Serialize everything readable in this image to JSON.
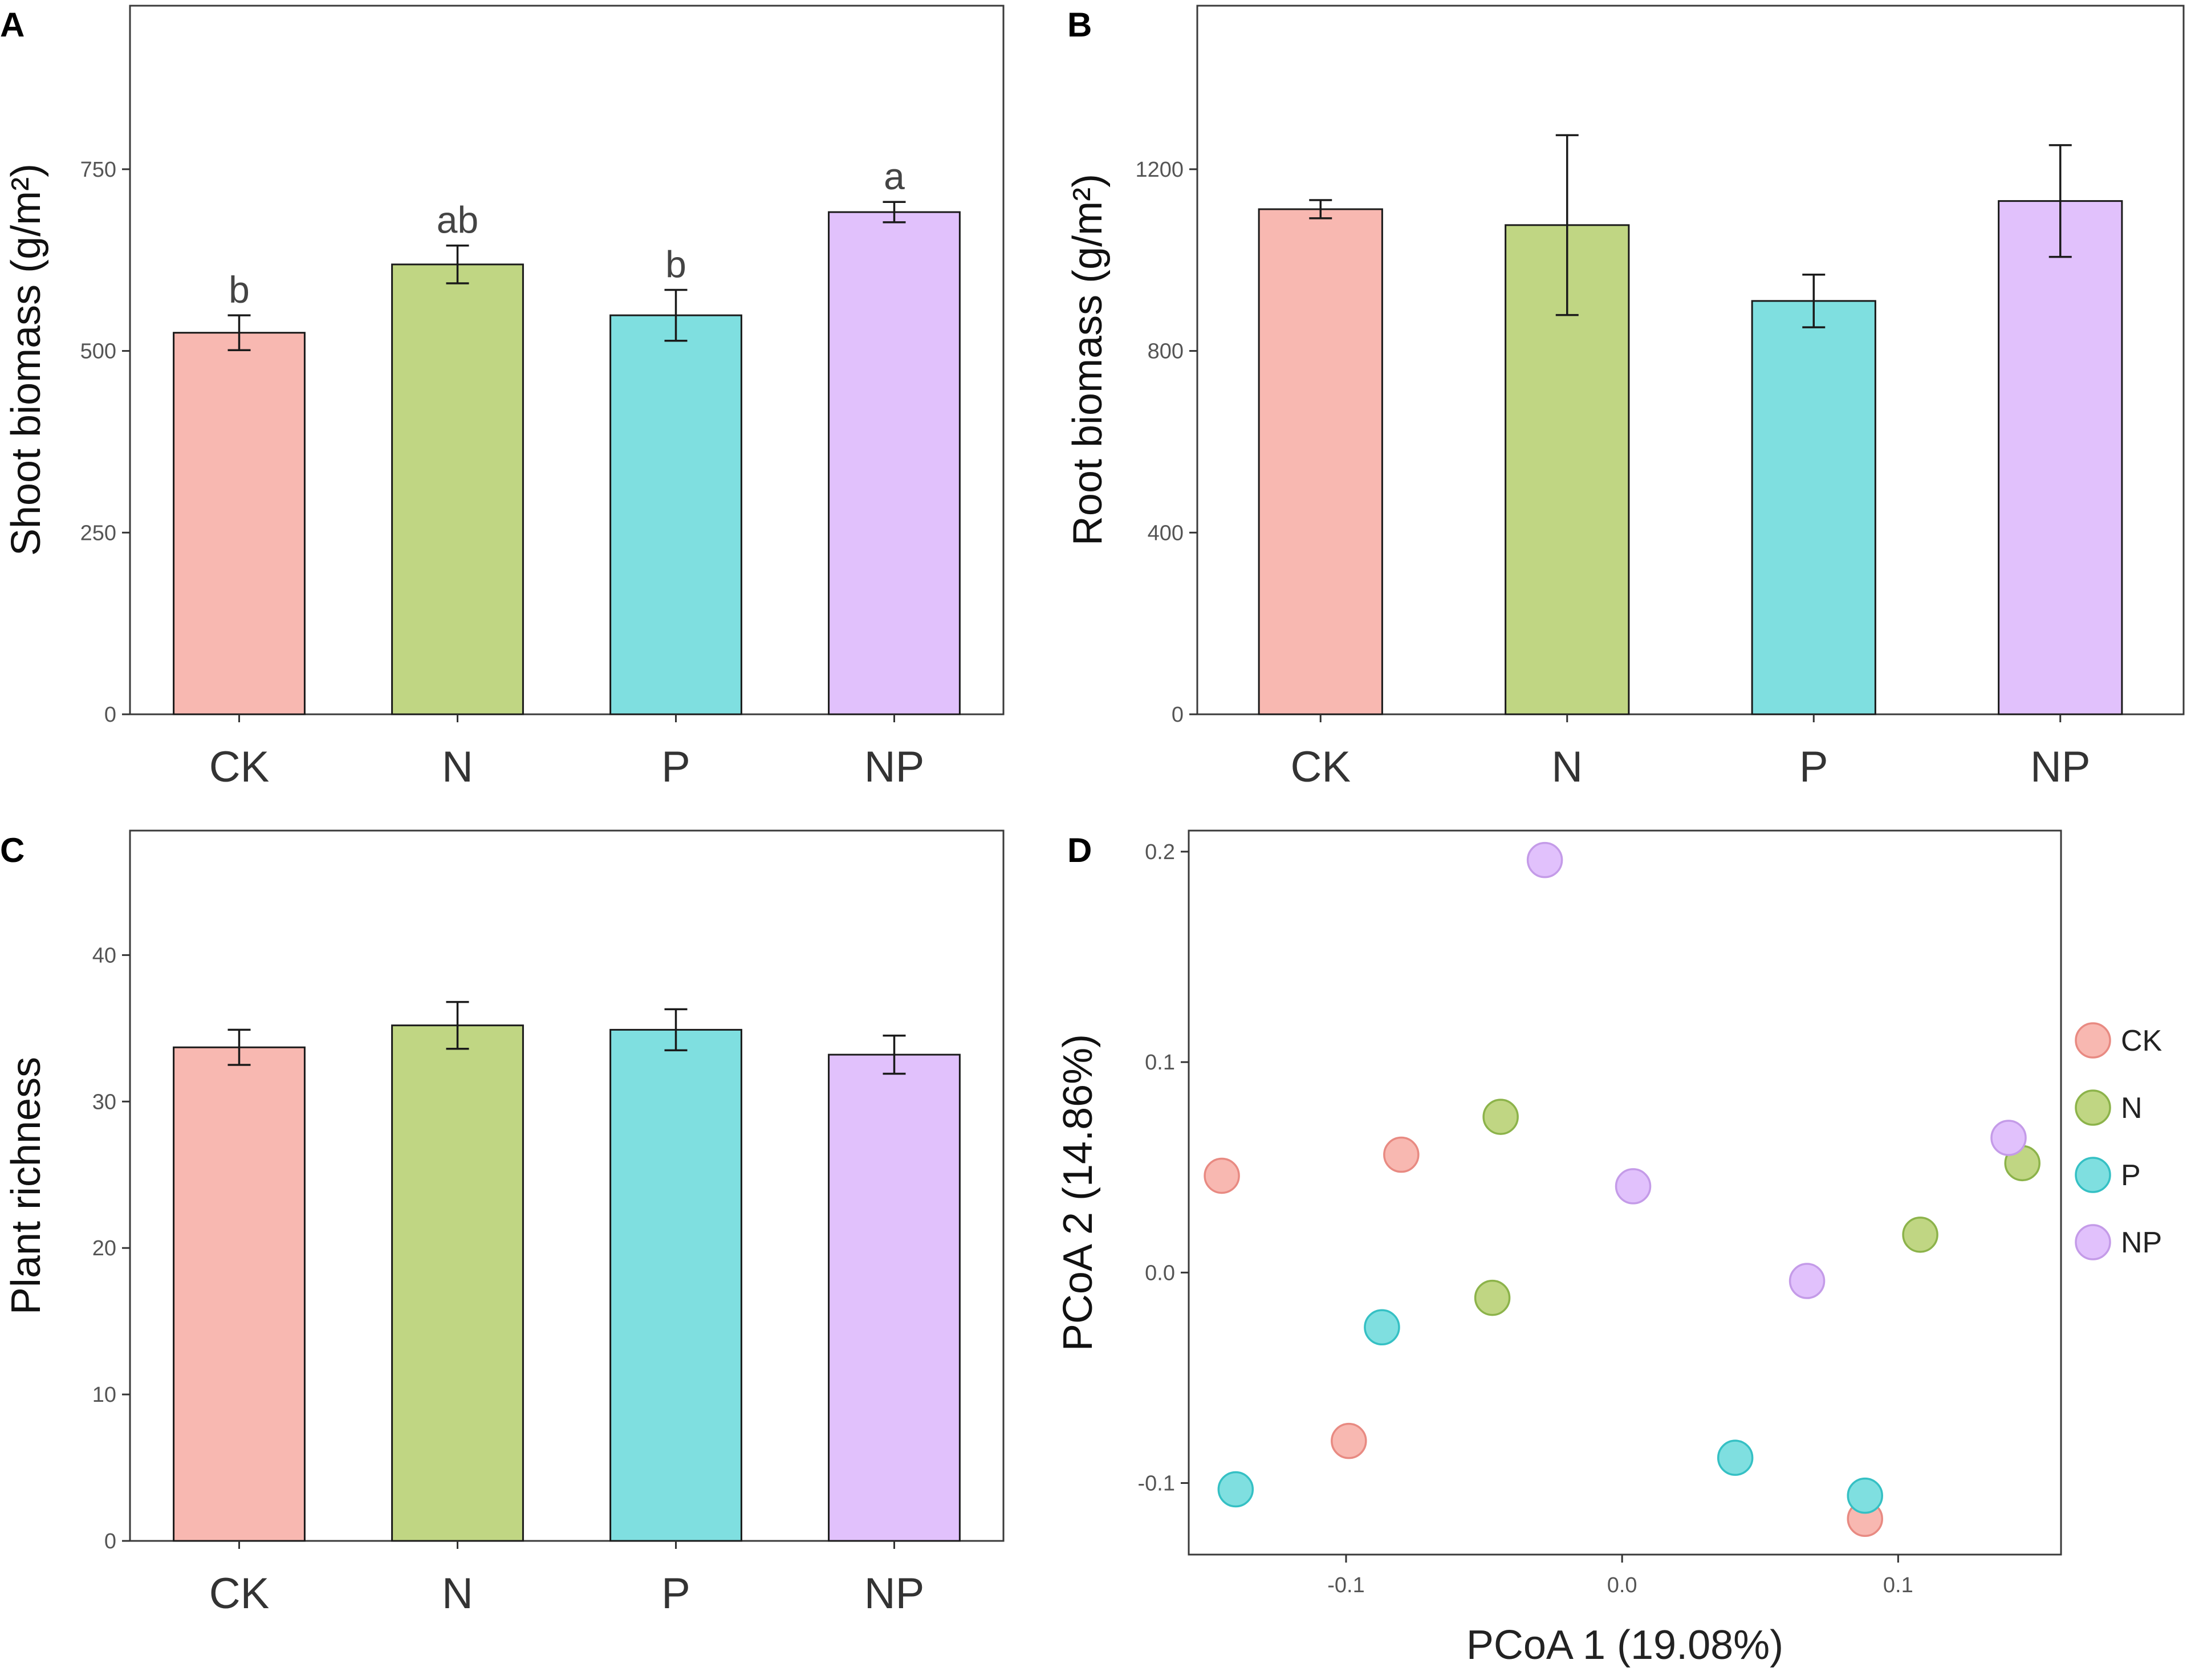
{
  "figure": {
    "colors": {
      "CK": "#f8b8b1",
      "N": "#c0d683",
      "P": "#7fdfe0",
      "NP": "#e1c1fc"
    },
    "point_colors": {
      "CK": {
        "fill": "#f8b8b1",
        "stroke": "#e88a82"
      },
      "N": {
        "fill": "#c0d683",
        "stroke": "#8cb34a"
      },
      "P": {
        "fill": "#7fdfe0",
        "stroke": "#35c0c4"
      },
      "NP": {
        "fill": "#e1c1fc",
        "stroke": "#c49be8"
      }
    }
  },
  "chart_data": [
    {
      "panel": "A",
      "type": "bar",
      "categories": [
        "CK",
        "N",
        "P",
        "NP"
      ],
      "values": [
        525,
        619,
        549,
        691
      ],
      "errors": [
        24,
        26,
        35,
        14
      ],
      "significance": [
        "b",
        "ab",
        "b",
        "a"
      ],
      "ylabel": "Shoot biomass (g/m²)",
      "xlabel": "",
      "ylim": [
        0,
        975
      ],
      "yticks": [
        0,
        250,
        500,
        750
      ]
    },
    {
      "panel": "B",
      "type": "bar",
      "categories": [
        "CK",
        "N",
        "P",
        "NP"
      ],
      "values": [
        1112,
        1077,
        910,
        1130
      ],
      "errors": [
        20,
        198,
        58,
        123
      ],
      "ylabel": "Root biomass (g/m²)",
      "xlabel": "",
      "ylim": [
        0,
        1560
      ],
      "yticks": [
        0,
        400,
        800,
        1200
      ]
    },
    {
      "panel": "C",
      "type": "bar",
      "categories": [
        "CK",
        "N",
        "P",
        "NP"
      ],
      "values": [
        33.7,
        35.2,
        34.9,
        33.2
      ],
      "errors": [
        1.2,
        1.6,
        1.4,
        1.3
      ],
      "ylabel": "Plant richness",
      "xlabel": "",
      "ylim": [
        0,
        48.5
      ],
      "yticks": [
        0,
        10,
        20,
        30,
        40
      ]
    },
    {
      "panel": "D",
      "type": "scatter",
      "xlabel": "PCoA 1 (19.08%)",
      "ylabel": "PCoA 2 (14.86%)",
      "xlim": [
        -0.157,
        0.159
      ],
      "ylim": [
        -0.134,
        0.21
      ],
      "xticks": [
        -0.1,
        0.0,
        0.1
      ],
      "yticks": [
        -0.1,
        0.0,
        0.1,
        0.2
      ],
      "xtick_labels": [
        "-0.1",
        "0.0",
        "0.1"
      ],
      "ytick_labels": [
        "-0.1",
        "0.0",
        "0.1",
        "0.2"
      ],
      "legend": [
        "CK",
        "N",
        "P",
        "NP"
      ],
      "series": [
        {
          "name": "CK",
          "points": [
            [
              -0.145,
              0.046
            ],
            [
              -0.08,
              0.056
            ],
            [
              -0.099,
              -0.08
            ],
            [
              0.088,
              -0.117
            ]
          ]
        },
        {
          "name": "N",
          "points": [
            [
              -0.044,
              0.074
            ],
            [
              -0.047,
              -0.012
            ],
            [
              0.108,
              0.018
            ],
            [
              0.145,
              0.052
            ]
          ]
        },
        {
          "name": "P",
          "points": [
            [
              -0.087,
              -0.026
            ],
            [
              -0.14,
              -0.103
            ],
            [
              0.041,
              -0.088
            ],
            [
              0.088,
              -0.106
            ]
          ]
        },
        {
          "name": "NP",
          "points": [
            [
              -0.028,
              0.196
            ],
            [
              0.004,
              0.041
            ],
            [
              0.067,
              -0.004
            ],
            [
              0.14,
              0.064
            ]
          ]
        }
      ]
    }
  ]
}
